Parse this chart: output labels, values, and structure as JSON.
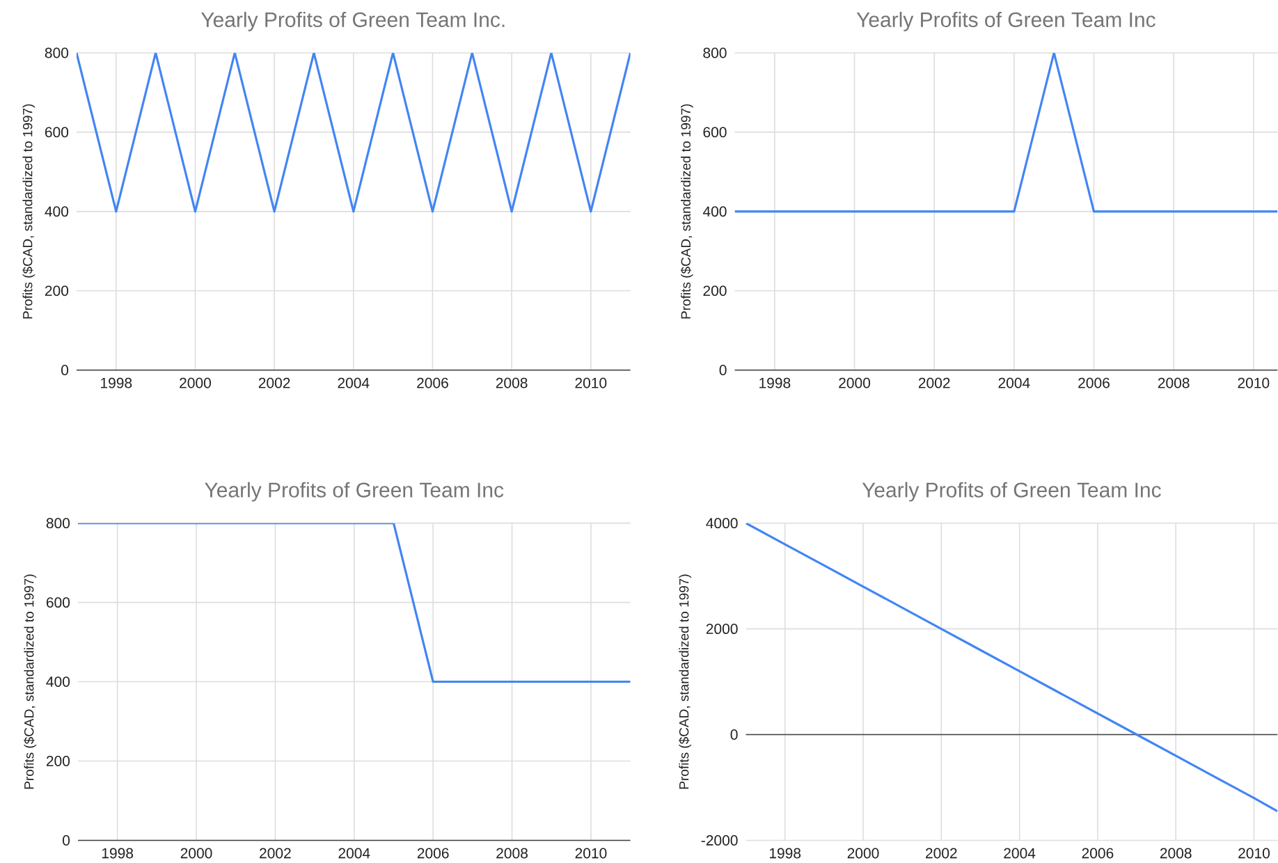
{
  "chart_data": [
    {
      "type": "line",
      "title": "Yearly Profits of Green Team Inc.",
      "ylabel": "Profits ($CAD, standardized to 1997)",
      "color": "#4285f4",
      "grid": true,
      "x": [
        1997,
        1998,
        1999,
        2000,
        2001,
        2002,
        2003,
        2004,
        2005,
        2006,
        2007,
        2008,
        2009,
        2010,
        2011
      ],
      "values": [
        800,
        400,
        800,
        400,
        800,
        400,
        800,
        400,
        800,
        400,
        800,
        400,
        800,
        400,
        800
      ],
      "xlim": [
        1997,
        2011
      ],
      "ylim": [
        0,
        800
      ],
      "xticks": [
        1998,
        2000,
        2002,
        2004,
        2006,
        2008,
        2010
      ],
      "yticks": [
        0,
        200,
        400,
        600,
        800
      ]
    },
    {
      "type": "line",
      "title": "Yearly Profits of Green Team Inc",
      "ylabel": "Profits ($CAD, standardized to 1997)",
      "color": "#4285f4",
      "grid": true,
      "x": [
        1997,
        1998,
        1999,
        2000,
        2001,
        2002,
        2003,
        2004,
        2005,
        2006,
        2007,
        2008,
        2009,
        2010,
        2010.6
      ],
      "values": [
        400,
        400,
        400,
        400,
        400,
        400,
        400,
        400,
        800,
        400,
        400,
        400,
        400,
        400,
        400
      ],
      "xlim": [
        1997,
        2010.6
      ],
      "ylim": [
        0,
        800
      ],
      "xticks": [
        1998,
        2000,
        2002,
        2004,
        2006,
        2008,
        2010
      ],
      "yticks": [
        0,
        200,
        400,
        600,
        800
      ]
    },
    {
      "type": "line",
      "title": "Yearly Profits of Green Team Inc",
      "ylabel": "Profits ($CAD, standardized to 1997)",
      "color": "#4285f4",
      "grid": true,
      "x": [
        1997,
        1998,
        1999,
        2000,
        2001,
        2002,
        2003,
        2004,
        2005,
        2006,
        2007,
        2008,
        2009,
        2010,
        2011
      ],
      "values": [
        800,
        800,
        800,
        800,
        800,
        800,
        800,
        800,
        800,
        400,
        400,
        400,
        400,
        400,
        400
      ],
      "xlim": [
        1997,
        2011
      ],
      "ylim": [
        0,
        800
      ],
      "xticks": [
        1998,
        2000,
        2002,
        2004,
        2006,
        2008,
        2010
      ],
      "yticks": [
        0,
        200,
        400,
        600,
        800
      ]
    },
    {
      "type": "line",
      "title": "Yearly Profits of Green Team Inc",
      "ylabel": "Profits ($CAD, standardized to 1997)",
      "color": "#4285f4",
      "grid": true,
      "x": [
        1997,
        1998,
        1999,
        2000,
        2001,
        2002,
        2003,
        2004,
        2005,
        2006,
        2007,
        2008,
        2009,
        2010,
        2010.6
      ],
      "values": [
        4000,
        3600,
        3200,
        2800,
        2400,
        2000,
        1600,
        1200,
        800,
        400,
        0,
        -400,
        -800,
        -1200,
        -1450
      ],
      "xlim": [
        1997,
        2010.6
      ],
      "ylim": [
        -2000,
        4000
      ],
      "xticks": [
        1998,
        2000,
        2002,
        2004,
        2006,
        2008,
        2010
      ],
      "yticks": [
        -2000,
        0,
        2000,
        4000
      ]
    }
  ]
}
